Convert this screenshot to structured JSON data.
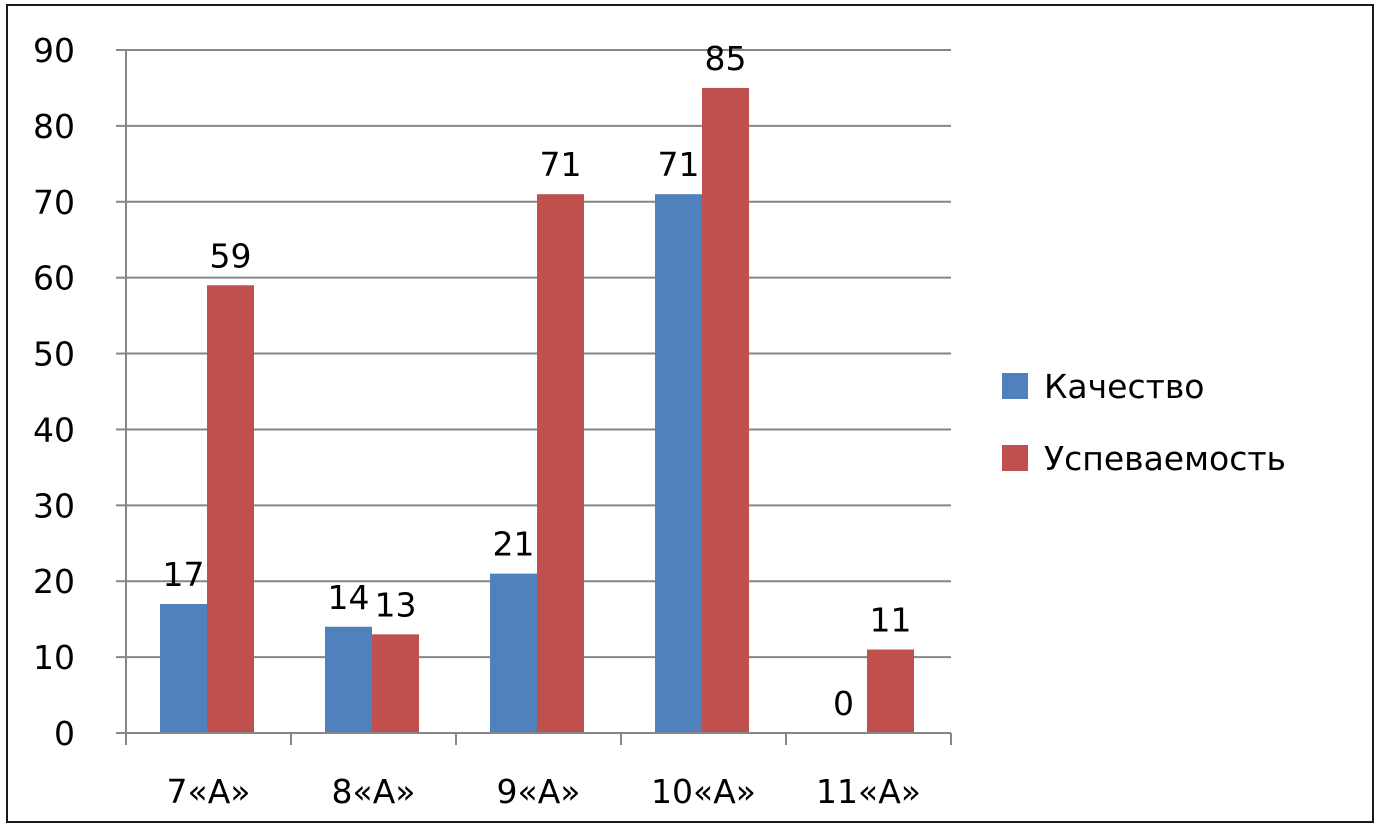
{
  "chart_data": {
    "type": "bar",
    "categories": [
      "7«А»",
      "8«А»",
      "9«А»",
      "10«А»",
      "11«А»"
    ],
    "series": [
      {
        "name": "Качество",
        "values": [
          17,
          14,
          21,
          71,
          0
        ],
        "color": "#4f81bd"
      },
      {
        "name": "Успеваемость",
        "values": [
          59,
          13,
          71,
          85,
          11
        ],
        "color": "#c0504d"
      }
    ],
    "data_labels": [
      [
        "17",
        "14",
        "21",
        "71",
        "0"
      ],
      [
        "59",
        "13",
        "71",
        "85",
        "11"
      ]
    ],
    "y_ticks": [
      "0",
      "10",
      "20",
      "30",
      "40",
      "50",
      "60",
      "70",
      "80",
      "90"
    ],
    "ylim": [
      0,
      90
    ],
    "title": "",
    "xlabel": "",
    "ylabel": "",
    "grid": true,
    "legend_position": "right"
  }
}
